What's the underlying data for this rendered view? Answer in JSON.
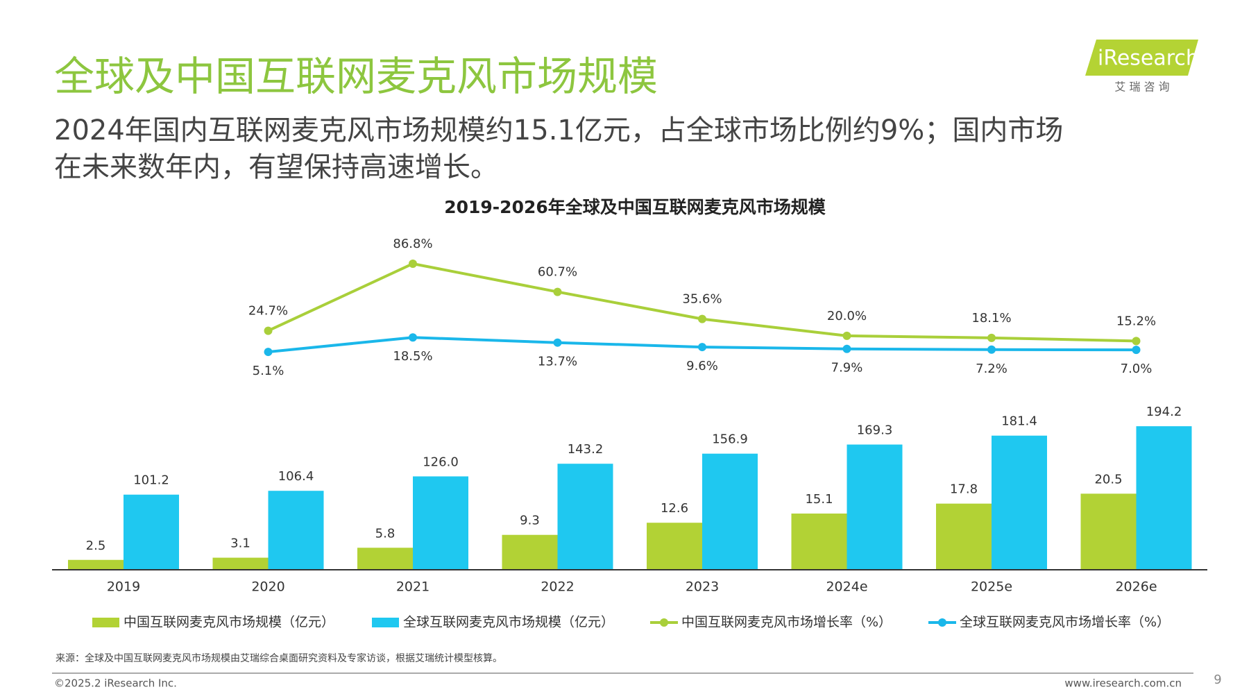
{
  "logo": {
    "brand": "iResearch",
    "sub": "艾 瑞 咨 询"
  },
  "header": {
    "title": "全球及中国互联网麦克风市场规模",
    "subtitle_lines": [
      "2024年国内互联网麦克风市场规模约15.1亿元，占全球市场比例约9%；国内市场",
      "在未来数年内，有望保持高速增长。"
    ]
  },
  "chart_data": {
    "type": "bar",
    "title": "2019-2026年全球及中国互联网麦克风市场规模",
    "categories": [
      "2019",
      "2020",
      "2021",
      "2022",
      "2023",
      "2024e",
      "2025e",
      "2026e"
    ],
    "ylim": [
      0,
      40
    ],
    "y2lim": [
      0,
      200
    ],
    "y3lim": [
      0,
      90
    ],
    "series": [
      {
        "name": "中国互联网麦克风市场规模（亿元）",
        "type": "bar",
        "axis": "y",
        "color": "#b2d235",
        "values": [
          2.5,
          3.1,
          5.8,
          9.3,
          12.6,
          15.1,
          17.8,
          20.5
        ]
      },
      {
        "name": "全球互联网麦克风市场规模（亿元）",
        "type": "bar",
        "axis": "y2",
        "color": "#1fc8f0",
        "values": [
          101.2,
          106.4,
          126,
          143.2,
          156.9,
          169.3,
          181.4,
          194.2
        ],
        "value_labels": [
          "101.2",
          "106.4",
          "126.0",
          "143.2",
          "156.9",
          "169.3",
          "181.4",
          "194.2"
        ]
      },
      {
        "name": "中国互联网麦克风市场增长率（%）",
        "type": "line",
        "axis": "y3",
        "color": "#a9cf3a",
        "values": [
          null,
          24.7,
          86.8,
          60.7,
          35.6,
          20,
          18.1,
          15.2
        ],
        "value_labels": [
          null,
          "24.7%",
          "86.8%",
          "60.7%",
          "35.6%",
          "20.0%",
          "18.1%",
          "15.2%"
        ]
      },
      {
        "name": "全球互联网麦克风市场增长率（%）",
        "type": "line",
        "axis": "y3",
        "color": "#1ab7ea",
        "values": [
          null,
          5.1,
          18.5,
          13.7,
          9.6,
          7.9,
          7.2,
          7
        ],
        "value_labels": [
          null,
          "5.1%",
          "18.5%",
          "13.7%",
          "9.6%",
          "7.9%",
          "7.2%",
          "7.0%"
        ]
      }
    ]
  },
  "footer": {
    "source": "来源：全球及中国互联网麦克风市场规模由艾瑞综合桌面研究资料及专家访谈，根据艾瑞统计模型核算。",
    "copyright": "©2025.2 iResearch Inc.",
    "url": "www.iresearch.com.cn",
    "page": "9"
  }
}
